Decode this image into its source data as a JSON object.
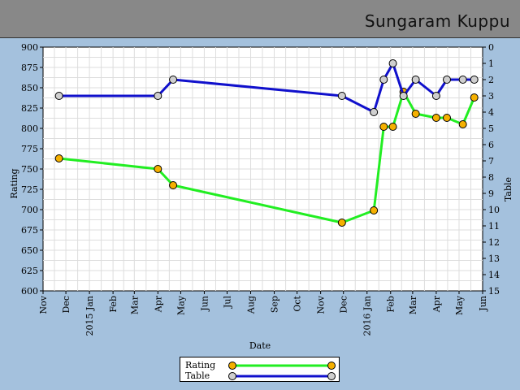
{
  "header": {
    "title": "Sungaram Kuppu"
  },
  "colors": {
    "rating_line": "#22ee22",
    "rating_marker": "#f5b000",
    "table_line": "#1010cc",
    "table_marker": "#cfcfcf",
    "plot_bg": "#ffffff",
    "grid": "#dddddd"
  },
  "chart_data": {
    "type": "line",
    "xlabel": "Date",
    "ylabel": "Rating",
    "y2label": "Table",
    "ylim": [
      600,
      900
    ],
    "y2lim": [
      0,
      15
    ],
    "y2_inverted": true,
    "grid": true,
    "legend_position": "bottom-center",
    "x_range": [
      "2014-11-01",
      "2016-06-01"
    ],
    "x_ticks": [
      {
        "date": "2014-11-01",
        "label": "Nov"
      },
      {
        "date": "2014-12-01",
        "label": "Dec"
      },
      {
        "date": "2015-01-01",
        "label": "2015 Jan"
      },
      {
        "date": "2015-02-01",
        "label": "Feb"
      },
      {
        "date": "2015-03-01",
        "label": "Mar"
      },
      {
        "date": "2015-04-01",
        "label": "Apr"
      },
      {
        "date": "2015-05-01",
        "label": "May"
      },
      {
        "date": "2015-06-01",
        "label": "Jun"
      },
      {
        "date": "2015-07-01",
        "label": "Jul"
      },
      {
        "date": "2015-08-01",
        "label": "Aug"
      },
      {
        "date": "2015-09-01",
        "label": "Sep"
      },
      {
        "date": "2015-10-01",
        "label": "Oct"
      },
      {
        "date": "2015-11-01",
        "label": "Nov"
      },
      {
        "date": "2015-12-01",
        "label": "Dec"
      },
      {
        "date": "2016-01-01",
        "label": "2016 Jan"
      },
      {
        "date": "2016-02-01",
        "label": "Feb"
      },
      {
        "date": "2016-03-01",
        "label": "Mar"
      },
      {
        "date": "2016-04-01",
        "label": "Apr"
      },
      {
        "date": "2016-05-01",
        "label": "May"
      },
      {
        "date": "2016-06-01",
        "label": "Jun"
      }
    ],
    "y_ticks": [
      600,
      625,
      650,
      675,
      700,
      725,
      750,
      775,
      800,
      825,
      850,
      875,
      900
    ],
    "y2_ticks": [
      0,
      1,
      2,
      3,
      4,
      5,
      6,
      7,
      8,
      9,
      10,
      11,
      12,
      13,
      14,
      15
    ],
    "series": [
      {
        "name": "Rating",
        "axis": "left",
        "points": [
          {
            "x": "2014-11-22",
            "y": 763
          },
          {
            "x": "2015-04-01",
            "y": 750
          },
          {
            "x": "2015-04-21",
            "y": 730
          },
          {
            "x": "2015-11-29",
            "y": 684
          },
          {
            "x": "2016-01-10",
            "y": 699
          },
          {
            "x": "2016-01-23",
            "y": 802
          },
          {
            "x": "2016-02-04",
            "y": 802
          },
          {
            "x": "2016-02-18",
            "y": 845
          },
          {
            "x": "2016-03-05",
            "y": 818
          },
          {
            "x": "2016-04-01",
            "y": 813
          },
          {
            "x": "2016-04-15",
            "y": 813
          },
          {
            "x": "2016-05-06",
            "y": 805
          },
          {
            "x": "2016-05-21",
            "y": 838
          }
        ]
      },
      {
        "name": "Table",
        "axis": "right",
        "points": [
          {
            "x": "2014-11-22",
            "y": 3
          },
          {
            "x": "2015-04-01",
            "y": 3
          },
          {
            "x": "2015-04-21",
            "y": 2
          },
          {
            "x": "2015-11-29",
            "y": 3
          },
          {
            "x": "2016-01-10",
            "y": 4
          },
          {
            "x": "2016-01-23",
            "y": 2
          },
          {
            "x": "2016-02-04",
            "y": 1
          },
          {
            "x": "2016-02-18",
            "y": 3
          },
          {
            "x": "2016-03-05",
            "y": 2
          },
          {
            "x": "2016-04-01",
            "y": 3
          },
          {
            "x": "2016-04-15",
            "y": 2
          },
          {
            "x": "2016-05-06",
            "y": 2
          },
          {
            "x": "2016-05-21",
            "y": 2
          }
        ]
      }
    ]
  }
}
